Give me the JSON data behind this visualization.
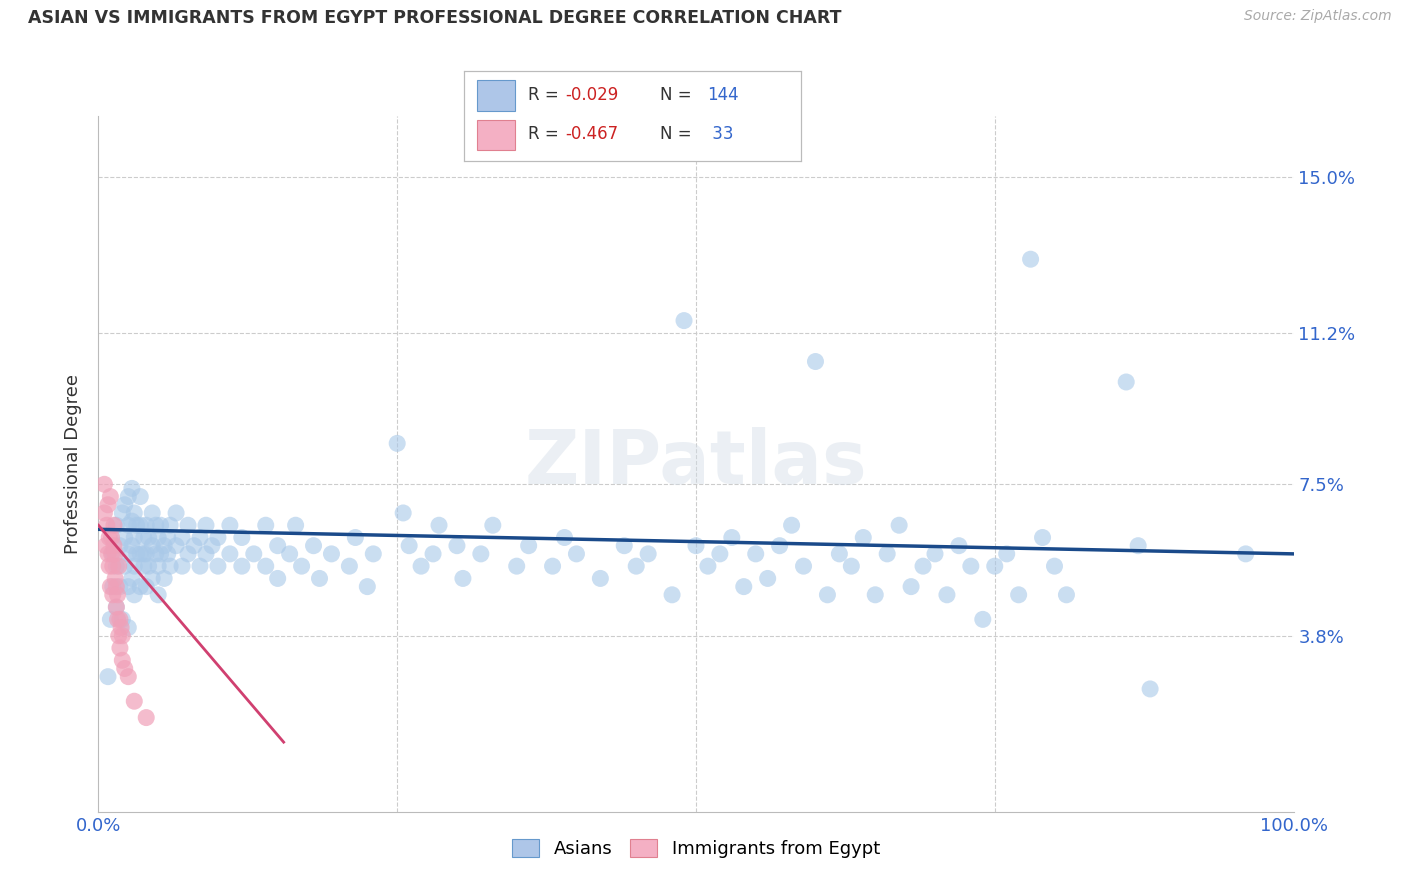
{
  "title": "ASIAN VS IMMIGRANTS FROM EGYPT PROFESSIONAL DEGREE CORRELATION CHART",
  "source": "Source: ZipAtlas.com",
  "ylabel": "Professional Degree",
  "xlim": [
    0,
    1.0
  ],
  "ylim": [
    -0.005,
    0.165
  ],
  "yticks": [
    0.038,
    0.075,
    0.112,
    0.15
  ],
  "ytick_labels": [
    "3.8%",
    "7.5%",
    "11.2%",
    "15.0%"
  ],
  "watermark": "ZIPatlas",
  "blue_color": "#a8c8e8",
  "pink_color": "#f0a0b8",
  "blue_line_color": "#1a4a8a",
  "pink_line_color": "#d04070",
  "blue_scatter": [
    [
      0.008,
      0.028
    ],
    [
      0.01,
      0.042
    ],
    [
      0.012,
      0.05
    ],
    [
      0.012,
      0.058
    ],
    [
      0.015,
      0.045
    ],
    [
      0.015,
      0.055
    ],
    [
      0.015,
      0.065
    ],
    [
      0.018,
      0.05
    ],
    [
      0.018,
      0.06
    ],
    [
      0.02,
      0.068
    ],
    [
      0.02,
      0.042
    ],
    [
      0.022,
      0.055
    ],
    [
      0.022,
      0.062
    ],
    [
      0.022,
      0.07
    ],
    [
      0.025,
      0.04
    ],
    [
      0.025,
      0.05
    ],
    [
      0.025,
      0.058
    ],
    [
      0.025,
      0.065
    ],
    [
      0.025,
      0.072
    ],
    [
      0.028,
      0.052
    ],
    [
      0.028,
      0.06
    ],
    [
      0.028,
      0.066
    ],
    [
      0.028,
      0.074
    ],
    [
      0.03,
      0.048
    ],
    [
      0.03,
      0.055
    ],
    [
      0.03,
      0.062
    ],
    [
      0.03,
      0.068
    ],
    [
      0.032,
      0.058
    ],
    [
      0.032,
      0.065
    ],
    [
      0.035,
      0.05
    ],
    [
      0.035,
      0.058
    ],
    [
      0.035,
      0.065
    ],
    [
      0.035,
      0.072
    ],
    [
      0.038,
      0.055
    ],
    [
      0.038,
      0.062
    ],
    [
      0.038,
      0.058
    ],
    [
      0.04,
      0.05
    ],
    [
      0.04,
      0.058
    ],
    [
      0.04,
      0.065
    ],
    [
      0.042,
      0.055
    ],
    [
      0.042,
      0.062
    ],
    [
      0.045,
      0.052
    ],
    [
      0.045,
      0.06
    ],
    [
      0.045,
      0.068
    ],
    [
      0.048,
      0.058
    ],
    [
      0.048,
      0.065
    ],
    [
      0.05,
      0.055
    ],
    [
      0.05,
      0.062
    ],
    [
      0.05,
      0.048
    ],
    [
      0.052,
      0.058
    ],
    [
      0.052,
      0.065
    ],
    [
      0.055,
      0.052
    ],
    [
      0.055,
      0.06
    ],
    [
      0.058,
      0.058
    ],
    [
      0.058,
      0.062
    ],
    [
      0.06,
      0.055
    ],
    [
      0.06,
      0.065
    ],
    [
      0.065,
      0.06
    ],
    [
      0.065,
      0.068
    ],
    [
      0.07,
      0.055
    ],
    [
      0.07,
      0.062
    ],
    [
      0.075,
      0.058
    ],
    [
      0.075,
      0.065
    ],
    [
      0.08,
      0.06
    ],
    [
      0.085,
      0.055
    ],
    [
      0.085,
      0.062
    ],
    [
      0.09,
      0.058
    ],
    [
      0.09,
      0.065
    ],
    [
      0.095,
      0.06
    ],
    [
      0.1,
      0.055
    ],
    [
      0.1,
      0.062
    ],
    [
      0.11,
      0.058
    ],
    [
      0.11,
      0.065
    ],
    [
      0.12,
      0.055
    ],
    [
      0.12,
      0.062
    ],
    [
      0.13,
      0.058
    ],
    [
      0.14,
      0.055
    ],
    [
      0.14,
      0.065
    ],
    [
      0.15,
      0.052
    ],
    [
      0.15,
      0.06
    ],
    [
      0.16,
      0.058
    ],
    [
      0.165,
      0.065
    ],
    [
      0.17,
      0.055
    ],
    [
      0.18,
      0.06
    ],
    [
      0.185,
      0.052
    ],
    [
      0.195,
      0.058
    ],
    [
      0.21,
      0.055
    ],
    [
      0.215,
      0.062
    ],
    [
      0.225,
      0.05
    ],
    [
      0.23,
      0.058
    ],
    [
      0.25,
      0.085
    ],
    [
      0.255,
      0.068
    ],
    [
      0.26,
      0.06
    ],
    [
      0.27,
      0.055
    ],
    [
      0.28,
      0.058
    ],
    [
      0.285,
      0.065
    ],
    [
      0.3,
      0.06
    ],
    [
      0.305,
      0.052
    ],
    [
      0.32,
      0.058
    ],
    [
      0.33,
      0.065
    ],
    [
      0.35,
      0.055
    ],
    [
      0.36,
      0.06
    ],
    [
      0.38,
      0.055
    ],
    [
      0.39,
      0.062
    ],
    [
      0.4,
      0.058
    ],
    [
      0.42,
      0.052
    ],
    [
      0.44,
      0.06
    ],
    [
      0.45,
      0.055
    ],
    [
      0.46,
      0.058
    ],
    [
      0.48,
      0.048
    ],
    [
      0.49,
      0.115
    ],
    [
      0.5,
      0.06
    ],
    [
      0.51,
      0.055
    ],
    [
      0.52,
      0.058
    ],
    [
      0.53,
      0.062
    ],
    [
      0.54,
      0.05
    ],
    [
      0.55,
      0.058
    ],
    [
      0.56,
      0.052
    ],
    [
      0.57,
      0.06
    ],
    [
      0.58,
      0.065
    ],
    [
      0.59,
      0.055
    ],
    [
      0.6,
      0.105
    ],
    [
      0.61,
      0.048
    ],
    [
      0.62,
      0.058
    ],
    [
      0.63,
      0.055
    ],
    [
      0.64,
      0.062
    ],
    [
      0.65,
      0.048
    ],
    [
      0.66,
      0.058
    ],
    [
      0.67,
      0.065
    ],
    [
      0.68,
      0.05
    ],
    [
      0.69,
      0.055
    ],
    [
      0.7,
      0.058
    ],
    [
      0.71,
      0.048
    ],
    [
      0.72,
      0.06
    ],
    [
      0.73,
      0.055
    ],
    [
      0.74,
      0.042
    ],
    [
      0.75,
      0.055
    ],
    [
      0.76,
      0.058
    ],
    [
      0.77,
      0.048
    ],
    [
      0.78,
      0.13
    ],
    [
      0.79,
      0.062
    ],
    [
      0.8,
      0.055
    ],
    [
      0.81,
      0.048
    ],
    [
      0.86,
      0.1
    ],
    [
      0.87,
      0.06
    ],
    [
      0.88,
      0.025
    ],
    [
      0.96,
      0.058
    ]
  ],
  "pink_scatter": [
    [
      0.005,
      0.075
    ],
    [
      0.005,
      0.068
    ],
    [
      0.006,
      0.06
    ],
    [
      0.007,
      0.065
    ],
    [
      0.008,
      0.058
    ],
    [
      0.008,
      0.07
    ],
    [
      0.009,
      0.062
    ],
    [
      0.009,
      0.055
    ],
    [
      0.01,
      0.05
    ],
    [
      0.01,
      0.072
    ],
    [
      0.011,
      0.058
    ],
    [
      0.011,
      0.062
    ],
    [
      0.012,
      0.048
    ],
    [
      0.012,
      0.055
    ],
    [
      0.013,
      0.06
    ],
    [
      0.013,
      0.065
    ],
    [
      0.014,
      0.052
    ],
    [
      0.014,
      0.058
    ],
    [
      0.015,
      0.045
    ],
    [
      0.015,
      0.05
    ],
    [
      0.016,
      0.042
    ],
    [
      0.016,
      0.048
    ],
    [
      0.017,
      0.038
    ],
    [
      0.017,
      0.055
    ],
    [
      0.018,
      0.035
    ],
    [
      0.018,
      0.042
    ],
    [
      0.019,
      0.04
    ],
    [
      0.02,
      0.032
    ],
    [
      0.02,
      0.038
    ],
    [
      0.022,
      0.03
    ],
    [
      0.025,
      0.028
    ],
    [
      0.03,
      0.022
    ],
    [
      0.04,
      0.018
    ]
  ],
  "blue_trend_x": [
    0.0,
    1.0
  ],
  "blue_trend_y": [
    0.064,
    0.058
  ],
  "pink_trend_x": [
    0.0,
    0.155
  ],
  "pink_trend_y": [
    0.065,
    0.012
  ],
  "grid_color": "#cccccc",
  "bg_color": "#ffffff",
  "figsize": [
    14.06,
    8.92
  ],
  "dpi": 100
}
